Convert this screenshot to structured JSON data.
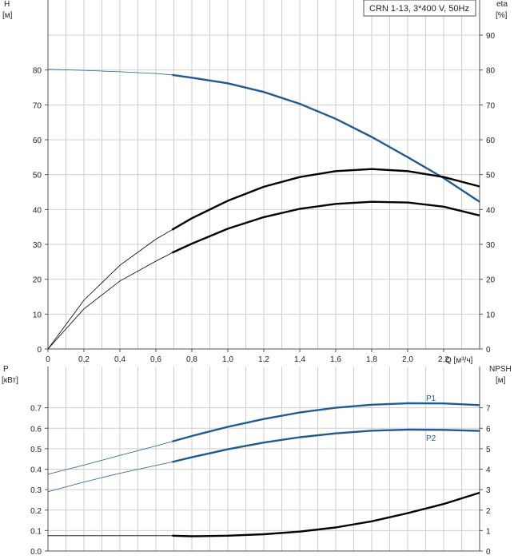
{
  "colors": {
    "blue": "#1f5a91",
    "black": "#000000",
    "grid": "#cfcfcf"
  },
  "chart_data": [
    {
      "type": "line",
      "title": "CRN 1-13, 3*400 V, 50Hz",
      "ylabel_left": "H",
      "yunit_left": "[м]",
      "ylabel_right": "eta",
      "yunit_right": "[%]",
      "xlabel": "Q [м³/ч]",
      "xlim": [
        0,
        2.4
      ],
      "ylim_left": [
        0,
        90
      ],
      "ylim_right": [
        0,
        90
      ],
      "grid": true,
      "xticks": [
        "0",
        "0,2",
        "0,4",
        "0,6",
        "0,8",
        "1,0",
        "1,2",
        "1,4",
        "1,6",
        "1,8",
        "2,0",
        "2,2"
      ],
      "yticks_left": [
        "0",
        "10",
        "20",
        "30",
        "40",
        "50",
        "60",
        "70",
        "80"
      ],
      "yticks_right": [
        "0",
        "10",
        "20",
        "30",
        "40",
        "50",
        "60",
        "70",
        "80",
        "90"
      ],
      "series": [
        {
          "color": "blue",
          "x": [
            0,
            0.2,
            0.4,
            0.6,
            0.69,
            0.8,
            1.0,
            1.2,
            1.4,
            1.6,
            1.8,
            2.0,
            2.2,
            2.4
          ],
          "values": [
            80.2,
            79.9,
            79.5,
            79.0,
            78.6,
            77.8,
            76.2,
            73.7,
            70.3,
            66.0,
            60.8,
            55.0,
            49.0,
            42.2
          ],
          "operating_from": 0.69
        },
        {
          "color": "black",
          "x": [
            0,
            0.2,
            0.4,
            0.6,
            0.69,
            0.8,
            1.0,
            1.2,
            1.4,
            1.6,
            1.8,
            2.0,
            2.2,
            2.4
          ],
          "values": [
            0,
            14,
            24,
            31.5,
            34.2,
            37.5,
            42.5,
            46.5,
            49.3,
            51.0,
            51.6,
            51.0,
            49.3,
            46.6
          ],
          "operating_from": 0.69
        },
        {
          "color": "black",
          "x": [
            0,
            0.2,
            0.4,
            0.6,
            0.69,
            0.8,
            1.0,
            1.2,
            1.4,
            1.6,
            1.8,
            2.0,
            2.2,
            2.4
          ],
          "values": [
            0,
            11.5,
            19.5,
            25.2,
            27.6,
            30.2,
            34.5,
            37.8,
            40.2,
            41.6,
            42.2,
            42.0,
            40.8,
            38.3
          ],
          "operating_from": 0.69
        }
      ]
    },
    {
      "type": "line",
      "ylabel_left": "P",
      "yunit_left": "[кВт]",
      "ylabel_right": "NPSH",
      "yunit_right": "[м]",
      "xlim": [
        0,
        2.4
      ],
      "ylim_left": [
        0,
        0.8
      ],
      "ylim_right": [
        0,
        8
      ],
      "grid": true,
      "yticks_left": [
        "0.0",
        "0.1",
        "0.2",
        "0.3",
        "0.4",
        "0.5",
        "0.6",
        "0.7"
      ],
      "yticks_right": [
        "0",
        "1",
        "2",
        "3",
        "4",
        "5",
        "6",
        "7"
      ],
      "series": [
        {
          "name": "P1",
          "color": "blue",
          "x": [
            0,
            0.2,
            0.4,
            0.6,
            0.69,
            0.8,
            1.0,
            1.2,
            1.4,
            1.6,
            1.8,
            2.0,
            2.2,
            2.4
          ],
          "values": [
            0.375,
            0.42,
            0.467,
            0.513,
            0.535,
            0.562,
            0.607,
            0.645,
            0.677,
            0.7,
            0.715,
            0.722,
            0.721,
            0.713
          ],
          "operating_from": 0.69
        },
        {
          "name": "P2",
          "color": "blue",
          "x": [
            0,
            0.2,
            0.4,
            0.6,
            0.69,
            0.8,
            1.0,
            1.2,
            1.4,
            1.6,
            1.8,
            2.0,
            2.2,
            2.4
          ],
          "values": [
            0.29,
            0.337,
            0.38,
            0.418,
            0.435,
            0.458,
            0.497,
            0.53,
            0.556,
            0.575,
            0.588,
            0.593,
            0.592,
            0.587
          ],
          "operating_from": 0.69
        },
        {
          "color": "black",
          "axis": "right",
          "x": [
            0,
            0.69,
            0.8,
            1.0,
            1.2,
            1.4,
            1.6,
            1.8,
            2.0,
            2.2,
            2.4
          ],
          "values": [
            0.75,
            0.75,
            0.72,
            0.75,
            0.82,
            0.95,
            1.15,
            1.45,
            1.85,
            2.3,
            2.85
          ],
          "operating_from": 0.69
        }
      ]
    }
  ]
}
